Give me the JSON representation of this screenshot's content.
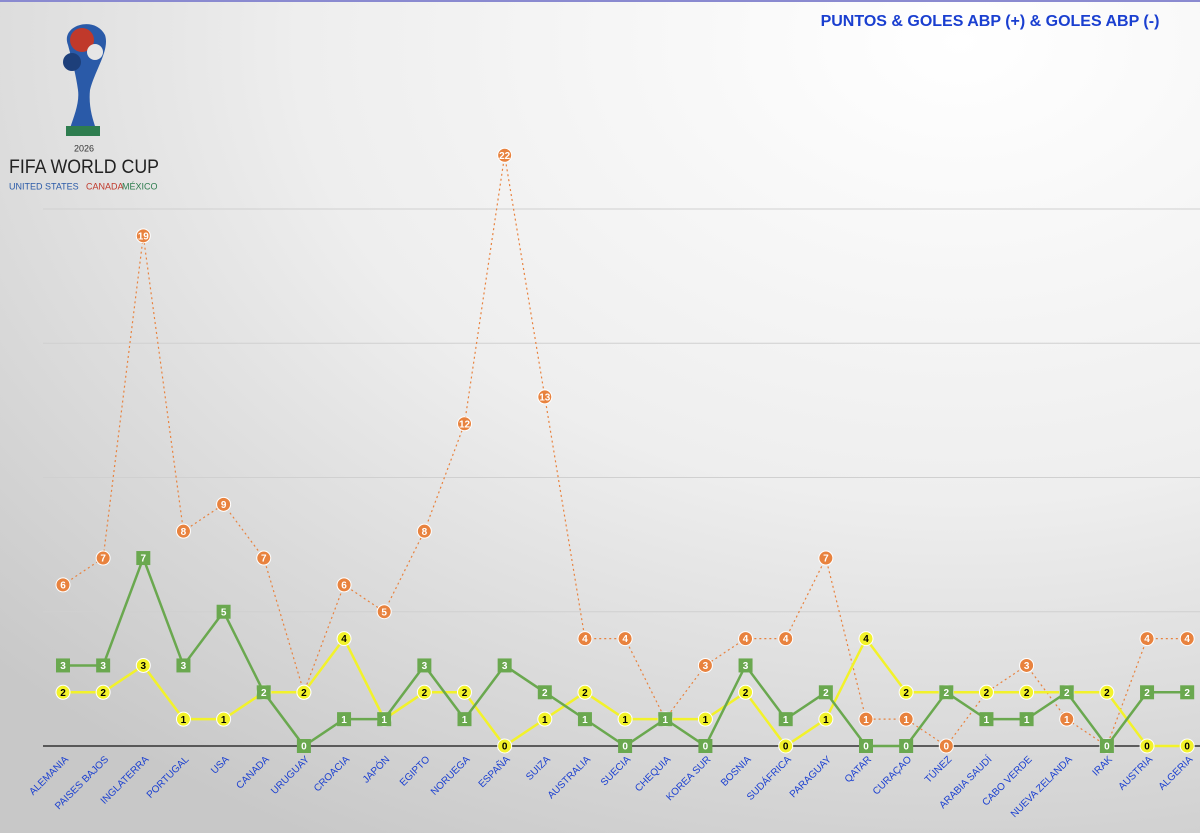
{
  "logo": {
    "year": "2026",
    "name": "FIFA WORLD CUP",
    "host1": "UNITED STATES",
    "host2": "CANADA",
    "host3": "MÉXICO"
  },
  "chart_data": {
    "type": "line",
    "title": "PUNTOS & GOLES ABP (+) & GOLES ABP (-)",
    "categories": [
      "ALEMANIA",
      "PAISES BAJOS",
      "INGLATERRA",
      "PORTUGAL",
      "USA",
      "CANADA",
      "URUGUAY",
      "CROACIA",
      "JAPÓN",
      "EGIPTO",
      "NORUEGA",
      "ESPAÑA",
      "SUIZA",
      "AUSTRALIA",
      "SUECIA",
      "CHEQUIA",
      "KOREA SUR",
      "BOSNIA",
      "SUDÁFRICA",
      "PARAGUAY",
      "QATAR",
      "CURAÇAO",
      "TÚNEZ",
      "ARABIA SAUDÍ",
      "CABO VERDE",
      "NUEVA ZELANDA",
      "IRAK",
      "AUSTRIA",
      "ALGERIA"
    ],
    "series": [
      {
        "color": "#e8823e",
        "marker": "circle",
        "dashed": true,
        "values": [
          6,
          7,
          19,
          8,
          9,
          7,
          2,
          6,
          5,
          8,
          12,
          22,
          13,
          4,
          4,
          1,
          3,
          4,
          4,
          7,
          1,
          1,
          0,
          2,
          3,
          1,
          0,
          4,
          4
        ]
      },
      {
        "color": "#f2f22a",
        "marker": "circle",
        "dashed": false,
        "values": [
          2,
          2,
          3,
          1,
          1,
          2,
          2,
          4,
          1,
          2,
          2,
          0,
          1,
          2,
          1,
          1,
          1,
          2,
          0,
          1,
          4,
          2,
          2,
          2,
          2,
          2,
          2,
          0,
          0
        ]
      },
      {
        "color": "#6aa84f",
        "marker": "square",
        "dashed": false,
        "values": [
          3,
          3,
          7,
          3,
          5,
          2,
          0,
          1,
          1,
          3,
          1,
          3,
          2,
          1,
          0,
          1,
          0,
          3,
          1,
          2,
          0,
          0,
          2,
          1,
          1,
          2,
          0,
          2,
          2
        ]
      }
    ],
    "ylim": [
      0,
      27
    ],
    "yticks": [
      0,
      5,
      10,
      15,
      20
    ],
    "grid": true
  }
}
